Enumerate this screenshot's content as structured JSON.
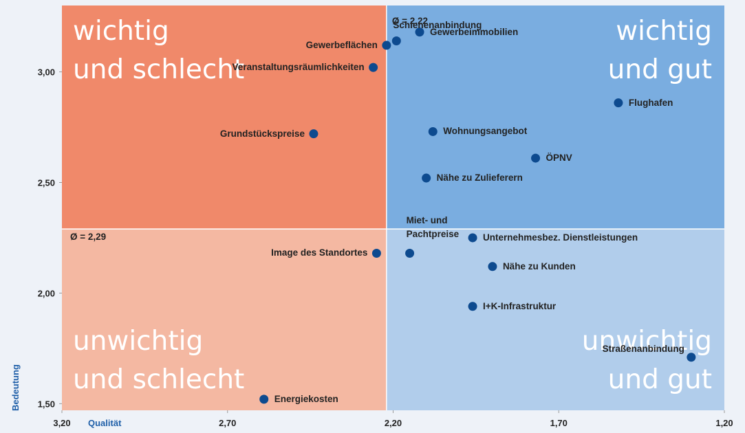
{
  "chart_data": {
    "type": "scatter",
    "x_label": "Qualität",
    "y_label": "Bedeutung",
    "xlim": [
      3.2,
      1.2
    ],
    "ylim": [
      1.47,
      3.3
    ],
    "xticks": [
      {
        "value": 3.2,
        "label": "3,20"
      },
      {
        "value": 2.7,
        "label": "2,70"
      },
      {
        "value": 2.2,
        "label": "2,20"
      },
      {
        "value": 1.7,
        "label": "1,70"
      },
      {
        "value": 1.2,
        "label": "1,20"
      }
    ],
    "yticks": [
      {
        "value": 1.5,
        "label": "1,50"
      },
      {
        "value": 2.0,
        "label": "2,00"
      },
      {
        "value": 2.5,
        "label": "2,50"
      },
      {
        "value": 3.0,
        "label": "3,00"
      }
    ],
    "x_mean": {
      "value": 2.22,
      "label": "Ø = 2,22"
    },
    "y_mean": {
      "value": 2.29,
      "label": "Ø = 2,29"
    },
    "quadrant_labels": [
      {
        "lines": [
          "wichtig",
          "und schlecht"
        ]
      },
      {
        "lines": [
          "wichtig",
          "und gut"
        ]
      },
      {
        "lines": [
          "unwichtig",
          "und schlecht"
        ]
      },
      {
        "lines": [
          "unwichtig",
          "und gut"
        ]
      }
    ],
    "quadrant_colors": [
      "#f0896a",
      "#7aade0",
      "#f4b8a2",
      "#b1cdeb"
    ],
    "color": "#0d4a8f",
    "points": {
      "names": [
        "Energiekosten",
        "Straßenanbindung",
        "I+K-Infrastruktur",
        "Nähe zu Kunden",
        "Miet- und Pachtpreise",
        "Image des Standortes",
        "Unternehmesbez. Dienstleistungen",
        "Nähe zu Zulieferern",
        "ÖPNV",
        "Wohnungsangebot",
        "Grundstückspreise",
        "Flughafen",
        "Veranstaltungsräumlichkeiten",
        "Gewerbeflächen",
        "Schienenanbindung",
        "Gewerbeimmobilien"
      ],
      "x": [
        2.59,
        1.3,
        1.96,
        1.9,
        2.15,
        2.25,
        1.96,
        2.1,
        1.77,
        2.08,
        2.44,
        1.52,
        2.26,
        2.22,
        2.19,
        2.12
      ],
      "y": [
        1.52,
        1.71,
        1.94,
        2.12,
        2.18,
        2.18,
        2.25,
        2.52,
        2.61,
        2.73,
        2.72,
        2.86,
        3.02,
        3.12,
        3.14,
        3.18
      ]
    }
  }
}
